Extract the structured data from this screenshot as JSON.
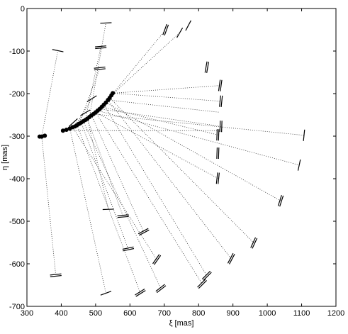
{
  "chart_data": {
    "type": "scatter",
    "xlabel": "ξ [mas]",
    "ylabel": "η [mas]",
    "xlim": [
      300,
      1200
    ],
    "ylim": [
      -700,
      0
    ],
    "xticks": [
      300,
      400,
      500,
      600,
      700,
      800,
      900,
      1000,
      1100,
      1200
    ],
    "yticks": [
      0,
      -100,
      -200,
      -300,
      -400,
      -500,
      -600,
      -700
    ],
    "grid": false,
    "legend": "none",
    "points": [
      [
        337,
        -301
      ],
      [
        343,
        -301
      ],
      [
        352,
        -299
      ],
      [
        405,
        -287
      ],
      [
        415,
        -285
      ],
      [
        425,
        -282
      ],
      [
        433,
        -279
      ],
      [
        440,
        -277
      ],
      [
        446,
        -274
      ],
      [
        452,
        -271
      ],
      [
        458,
        -268
      ],
      [
        464,
        -265
      ],
      [
        470,
        -262
      ],
      [
        476,
        -259
      ],
      [
        482,
        -255
      ],
      [
        488,
        -251
      ],
      [
        494,
        -248
      ],
      [
        500,
        -244
      ],
      [
        506,
        -240
      ],
      [
        512,
        -236
      ],
      [
        518,
        -231
      ],
      [
        524,
        -226
      ],
      [
        530,
        -221
      ],
      [
        536,
        -215
      ],
      [
        541,
        -210
      ],
      [
        546,
        -204
      ],
      [
        550,
        -199
      ]
    ],
    "connections": [
      {
        "from": [
          343,
          -301
        ],
        "to": [
          384,
          -627
        ]
      },
      {
        "from": [
          343,
          -301
        ],
        "to": [
          390,
          -99
        ]
      },
      {
        "from": [
          415,
          -285
        ],
        "to": [
          435,
          -268
        ]
      },
      {
        "from": [
          425,
          -282
        ],
        "to": [
          530,
          -669
        ]
      },
      {
        "from": [
          433,
          -279
        ],
        "to": [
          470,
          -245
        ]
      },
      {
        "from": [
          440,
          -277
        ],
        "to": [
          489,
          -212
        ]
      },
      {
        "from": [
          446,
          -274
        ],
        "to": [
          630,
          -668
        ]
      },
      {
        "from": [
          452,
          -271
        ],
        "to": [
          512,
          -141
        ]
      },
      {
        "from": [
          458,
          -268
        ],
        "to": [
          595,
          -565
        ]
      },
      {
        "from": [
          464,
          -265
        ],
        "to": [
          690,
          -658
        ]
      },
      {
        "from": [
          470,
          -262
        ],
        "to": [
          515,
          -91
        ]
      },
      {
        "from": [
          476,
          -259
        ],
        "to": [
          537,
          -472
        ]
      },
      {
        "from": [
          482,
          -255
        ],
        "to": [
          530,
          -34
        ]
      },
      {
        "from": [
          488,
          -251
        ],
        "to": [
          640,
          -525
        ]
      },
      {
        "from": [
          494,
          -248
        ],
        "to": [
          1107,
          -298
        ]
      },
      {
        "from": [
          500,
          -244
        ],
        "to": [
          810,
          -647
        ]
      },
      {
        "from": [
          506,
          -240
        ],
        "to": [
          1093,
          -368
        ]
      },
      {
        "from": [
          512,
          -236
        ],
        "to": [
          865,
          -277
        ]
      },
      {
        "from": [
          518,
          -231
        ],
        "to": [
          856,
          -297
        ]
      },
      {
        "from": [
          524,
          -226
        ],
        "to": [
          824,
          -628
        ]
      },
      {
        "from": [
          530,
          -221
        ],
        "to": [
          1039,
          -452
        ]
      },
      {
        "from": [
          536,
          -215
        ],
        "to": [
          895,
          -588
        ]
      },
      {
        "from": [
          541,
          -210
        ],
        "to": [
          961,
          -551
        ]
      },
      {
        "from": [
          546,
          -204
        ],
        "to": [
          704,
          -50
        ]
      },
      {
        "from": [
          550,
          -199
        ],
        "to": [
          863,
          -181
        ]
      },
      {
        "from": [
          405,
          -287
        ],
        "to": [
          856,
          -287
        ]
      },
      {
        "from": [
          433,
          -279
        ],
        "to": [
          678,
          -590
        ]
      },
      {
        "from": [
          476,
          -259
        ],
        "to": [
          580,
          -488
        ]
      },
      {
        "from": [
          500,
          -244
        ],
        "to": [
          856,
          -399
        ]
      },
      {
        "from": [
          536,
          -215
        ],
        "to": [
          862,
          -244
        ]
      },
      {
        "from": [
          546,
          -204
        ],
        "to": [
          745,
          -57
        ]
      },
      {
        "from": [
          550,
          -199
        ],
        "to": [
          865,
          -218
        ]
      }
    ],
    "markers": [
      {
        "center": [
          390,
          -99
        ],
        "angle": -12
      },
      {
        "center": [
          435,
          -268
        ],
        "angle": 42
      },
      {
        "center": [
          470,
          -245
        ],
        "angle": 30
      },
      {
        "center": [
          489,
          -212
        ],
        "angle": 32
      },
      {
        "center": [
          512,
          -141
        ],
        "angle": 6,
        "double": true
      },
      {
        "center": [
          515,
          -91
        ],
        "angle": 5,
        "double": true
      },
      {
        "center": [
          530,
          -34
        ],
        "angle": 3
      },
      {
        "center": [
          580,
          -488
        ],
        "angle": 5,
        "double": true
      },
      {
        "center": [
          537,
          -472
        ],
        "angle": 2
      },
      {
        "center": [
          384,
          -627
        ],
        "angle": 6,
        "double": true
      },
      {
        "center": [
          530,
          -669
        ],
        "angle": 20
      },
      {
        "center": [
          595,
          -565
        ],
        "angle": 12,
        "double": true
      },
      {
        "center": [
          640,
          -525
        ],
        "angle": 28,
        "double": true
      },
      {
        "center": [
          630,
          -668
        ],
        "angle": 32,
        "double": true
      },
      {
        "center": [
          678,
          -590
        ],
        "angle": 55,
        "double": true
      },
      {
        "center": [
          690,
          -658
        ],
        "angle": 38,
        "double": true
      },
      {
        "center": [
          704,
          -50
        ],
        "angle": 70,
        "double": true
      },
      {
        "center": [
          745,
          -57
        ],
        "angle": 60
      },
      {
        "center": [
          770,
          -40
        ],
        "angle": 62
      },
      {
        "center": [
          810,
          -647
        ],
        "angle": 45,
        "double": true
      },
      {
        "center": [
          824,
          -628
        ],
        "angle": 45,
        "double": true
      },
      {
        "center": [
          824,
          -138
        ],
        "angle": 80,
        "double": true
      },
      {
        "center": [
          863,
          -181
        ],
        "angle": 82,
        "double": true
      },
      {
        "center": [
          865,
          -218
        ],
        "angle": 84,
        "double": true
      },
      {
        "center": [
          865,
          -277
        ],
        "angle": 88,
        "double": true
      },
      {
        "center": [
          856,
          -297
        ],
        "angle": 88,
        "double": true
      },
      {
        "center": [
          856,
          -340
        ],
        "angle": 88,
        "double": true
      },
      {
        "center": [
          856,
          -399
        ],
        "angle": 84,
        "double": true
      },
      {
        "center": [
          895,
          -588
        ],
        "angle": 62,
        "double": true
      },
      {
        "center": [
          961,
          -551
        ],
        "angle": 65,
        "double": true
      },
      {
        "center": [
          1039,
          -452
        ],
        "angle": 72,
        "double": true
      },
      {
        "center": [
          1093,
          -368
        ],
        "angle": 78
      },
      {
        "center": [
          1107,
          -298
        ],
        "angle": 84
      }
    ]
  }
}
